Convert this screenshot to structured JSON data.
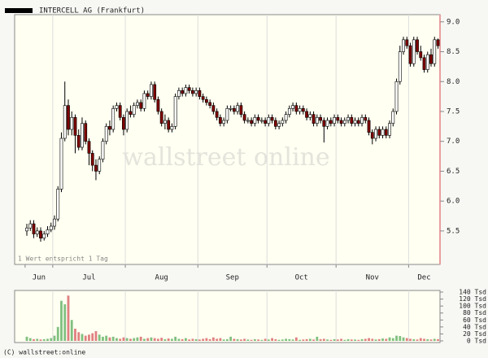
{
  "chart_data": {
    "type": "candlestick",
    "title": "INTERCELL AG (Frankfurt)",
    "note": "1 Wert entspricht 1 Tag",
    "watermark": "wallstreet online",
    "copyright": "(C) wallstreet:online",
    "categories": [
      "Jun",
      null,
      null,
      null,
      null,
      null,
      null,
      null,
      "Jul",
      null,
      null,
      null,
      null,
      null,
      null,
      null,
      null,
      null,
      null,
      null,
      null,
      null,
      null,
      null,
      null,
      null,
      null,
      null,
      null,
      "Aug",
      null,
      null,
      null,
      null,
      null,
      null,
      null,
      null,
      null,
      null,
      null,
      null,
      null,
      null,
      null,
      null,
      null,
      null,
      null,
      null,
      "Sep",
      null,
      null,
      null,
      null,
      null,
      null,
      null,
      null,
      null,
      null,
      null,
      null,
      null,
      null,
      null,
      null,
      null,
      null,
      null,
      "Oct",
      null,
      null,
      null,
      null,
      null,
      null,
      null,
      null,
      null,
      null,
      null,
      null,
      null,
      null,
      null,
      null,
      null,
      null,
      null,
      "Nov",
      null,
      null,
      null,
      null,
      null,
      null,
      null,
      null,
      null,
      null,
      null,
      null,
      null,
      null,
      null,
      null,
      null,
      null,
      null,
      null,
      "Dec",
      null,
      null,
      null,
      null,
      null,
      null,
      null,
      null
    ],
    "open": [
      5.5,
      5.55,
      5.62,
      5.45,
      5.5,
      5.38,
      5.45,
      5.52,
      5.58,
      5.7,
      6.2,
      7.05,
      7.6,
      7.2,
      7.4,
      7.1,
      6.9,
      7.3,
      7.0,
      6.8,
      6.6,
      6.5,
      6.7,
      7.0,
      7.25,
      7.2,
      7.55,
      7.6,
      7.4,
      7.2,
      7.5,
      7.45,
      7.6,
      7.65,
      7.55,
      7.8,
      7.75,
      7.95,
      7.7,
      7.5,
      7.3,
      7.35,
      7.2,
      7.25,
      7.75,
      7.85,
      7.8,
      7.9,
      7.85,
      7.8,
      7.85,
      7.75,
      7.7,
      7.65,
      7.6,
      7.5,
      7.4,
      7.3,
      7.35,
      7.55,
      7.55,
      7.5,
      7.6,
      7.45,
      7.35,
      7.35,
      7.3,
      7.4,
      7.35,
      7.35,
      7.3,
      7.4,
      7.35,
      7.25,
      7.3,
      7.35,
      7.45,
      7.55,
      7.6,
      7.5,
      7.55,
      7.5,
      7.4,
      7.45,
      7.3,
      7.4,
      7.35,
      7.25,
      7.35,
      7.3,
      7.4,
      7.35,
      7.3,
      7.35,
      7.4,
      7.3,
      7.35,
      7.3,
      7.4,
      7.35,
      7.15,
      7.05,
      7.2,
      7.1,
      7.2,
      7.1,
      7.3,
      7.5,
      8.0,
      8.5,
      8.7,
      8.6,
      8.3,
      8.7,
      8.5,
      8.4,
      8.2,
      8.45,
      8.3,
      8.7
    ],
    "high": [
      5.62,
      5.68,
      5.68,
      5.56,
      5.56,
      5.5,
      5.58,
      5.64,
      5.76,
      6.25,
      7.15,
      8.0,
      7.7,
      7.5,
      7.45,
      7.2,
      7.4,
      7.35,
      7.05,
      6.85,
      6.7,
      6.75,
      7.05,
      7.3,
      7.35,
      7.6,
      7.65,
      7.65,
      7.45,
      7.55,
      7.6,
      7.65,
      7.7,
      7.7,
      7.85,
      7.85,
      8.0,
      8.0,
      7.75,
      7.55,
      7.45,
      7.4,
      7.3,
      7.8,
      7.9,
      7.9,
      7.95,
      7.95,
      7.9,
      7.9,
      7.9,
      7.8,
      7.75,
      7.7,
      7.65,
      7.55,
      7.45,
      7.4,
      7.6,
      7.6,
      7.6,
      7.65,
      7.65,
      7.5,
      7.4,
      7.4,
      7.45,
      7.45,
      7.4,
      7.4,
      7.45,
      7.45,
      7.4,
      7.35,
      7.4,
      7.5,
      7.6,
      7.65,
      7.65,
      7.6,
      7.6,
      7.55,
      7.5,
      7.5,
      7.45,
      7.45,
      7.4,
      7.4,
      7.4,
      7.45,
      7.45,
      7.4,
      7.4,
      7.45,
      7.45,
      7.4,
      7.4,
      7.45,
      7.45,
      7.4,
      7.2,
      7.25,
      7.25,
      7.25,
      7.25,
      7.35,
      7.55,
      8.05,
      8.6,
      8.75,
      8.75,
      8.65,
      8.75,
      8.75,
      8.6,
      8.45,
      8.5,
      8.55,
      8.75,
      8.72
    ],
    "low": [
      5.42,
      5.5,
      5.38,
      5.4,
      5.32,
      5.34,
      5.4,
      5.48,
      5.52,
      5.66,
      6.15,
      7.0,
      7.1,
      7.1,
      6.8,
      6.85,
      6.85,
      6.95,
      6.6,
      6.5,
      6.35,
      6.45,
      6.65,
      6.95,
      7.1,
      7.15,
      7.5,
      7.35,
      7.1,
      7.15,
      7.4,
      7.4,
      7.55,
      7.5,
      7.5,
      7.7,
      7.7,
      7.65,
      7.45,
      7.25,
      7.2,
      7.15,
      7.15,
      7.2,
      7.7,
      7.75,
      7.75,
      7.8,
      7.75,
      7.75,
      7.7,
      7.65,
      7.6,
      7.55,
      7.45,
      7.35,
      7.25,
      7.25,
      7.3,
      7.5,
      7.45,
      7.45,
      7.4,
      7.3,
      7.3,
      7.25,
      7.25,
      7.3,
      7.3,
      7.25,
      7.25,
      7.3,
      7.2,
      7.2,
      7.25,
      7.3,
      7.4,
      7.5,
      7.45,
      7.45,
      7.45,
      7.35,
      7.35,
      7.25,
      7.25,
      7.3,
      6.98,
      7.2,
      7.25,
      7.25,
      7.3,
      7.25,
      7.25,
      7.3,
      7.25,
      7.25,
      7.25,
      7.25,
      7.3,
      7.1,
      6.95,
      7.0,
      7.05,
      7.05,
      7.05,
      7.05,
      7.25,
      7.45,
      7.95,
      8.45,
      8.55,
      8.25,
      8.25,
      8.45,
      8.35,
      8.15,
      8.15,
      8.25,
      8.25,
      8.55
    ],
    "close": [
      5.55,
      5.62,
      5.45,
      5.5,
      5.38,
      5.45,
      5.52,
      5.58,
      5.7,
      6.2,
      7.05,
      7.6,
      7.2,
      7.4,
      7.1,
      6.9,
      7.3,
      7.0,
      6.8,
      6.6,
      6.5,
      6.7,
      7.0,
      7.25,
      7.2,
      7.55,
      7.6,
      7.4,
      7.2,
      7.5,
      7.45,
      7.6,
      7.65,
      7.55,
      7.8,
      7.75,
      7.95,
      7.7,
      7.5,
      7.3,
      7.35,
      7.2,
      7.25,
      7.75,
      7.85,
      7.8,
      7.9,
      7.85,
      7.8,
      7.85,
      7.75,
      7.7,
      7.65,
      7.6,
      7.5,
      7.4,
      7.3,
      7.35,
      7.55,
      7.55,
      7.5,
      7.6,
      7.45,
      7.35,
      7.35,
      7.3,
      7.4,
      7.35,
      7.35,
      7.3,
      7.4,
      7.35,
      7.25,
      7.3,
      7.35,
      7.45,
      7.55,
      7.6,
      7.5,
      7.55,
      7.5,
      7.4,
      7.45,
      7.3,
      7.4,
      7.35,
      7.25,
      7.35,
      7.3,
      7.4,
      7.35,
      7.3,
      7.35,
      7.4,
      7.3,
      7.35,
      7.3,
      7.4,
      7.35,
      7.15,
      7.05,
      7.2,
      7.1,
      7.2,
      7.1,
      7.3,
      7.5,
      8.0,
      8.5,
      8.7,
      8.6,
      8.3,
      8.7,
      8.5,
      8.4,
      8.2,
      8.45,
      8.3,
      8.7,
      8.6
    ],
    "up_color": "#ffffff",
    "down_color": "#800000",
    "ylim": [
      4.94,
      9.12
    ],
    "yticks": [
      {
        "value": 5.5,
        "label": "5.5"
      },
      {
        "value": 6,
        "label": "6.0"
      },
      {
        "value": 6.5,
        "label": "6.5"
      },
      {
        "value": 7,
        "label": "7.0"
      },
      {
        "value": 7.5,
        "label": "7.5"
      },
      {
        "value": 8,
        "label": "8.0"
      },
      {
        "value": 8.5,
        "label": "8.5"
      },
      {
        "value": 9,
        "label": "9.0"
      }
    ],
    "volume": {
      "values": [
        12,
        8,
        5,
        6,
        4,
        5,
        6,
        8,
        15,
        40,
        115,
        105,
        130,
        60,
        35,
        25,
        20,
        15,
        18,
        22,
        28,
        18,
        12,
        15,
        10,
        12,
        8,
        6,
        10,
        8,
        6,
        8,
        10,
        12,
        6,
        8,
        10,
        8,
        6,
        9,
        5,
        7,
        6,
        12,
        6,
        5,
        8,
        4,
        6,
        5,
        4,
        6,
        8,
        5,
        10,
        6,
        8,
        4,
        5,
        12,
        6,
        5,
        4,
        6,
        4,
        3,
        5,
        4,
        3,
        6,
        4,
        8,
        5,
        3,
        4,
        6,
        5,
        4,
        10,
        3,
        4,
        5,
        6,
        4,
        12,
        5,
        6,
        4,
        3,
        5,
        4,
        6,
        3,
        5,
        4,
        4,
        3,
        5,
        6,
        8,
        6,
        4,
        5,
        7,
        6,
        10,
        8,
        15,
        14,
        10,
        8,
        6,
        5,
        4,
        8,
        6,
        5,
        4,
        6,
        5
      ],
      "up_color": "#80c080",
      "down_color": "#e08080",
      "ylim": [
        0,
        140
      ],
      "yticks": [
        {
          "value": 0,
          "label": "0 Tsd"
        },
        {
          "value": 20,
          "label": "20 Tsd"
        },
        {
          "value": 40,
          "label": "40 Tsd"
        },
        {
          "value": 60,
          "label": "60 Tsd"
        },
        {
          "value": 80,
          "label": "80 Tsd"
        },
        {
          "value": 100,
          "label": "100 Tsd"
        },
        {
          "value": 120,
          "label": "120 Tsd"
        },
        {
          "value": 140,
          "label": "140 Tsd"
        }
      ]
    }
  }
}
